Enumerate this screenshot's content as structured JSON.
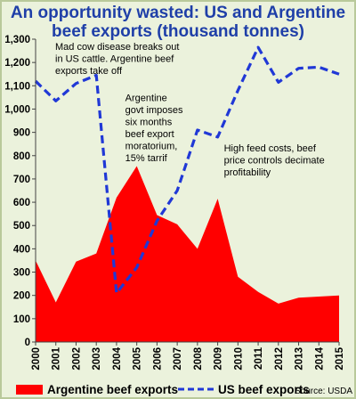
{
  "title_line1": "An opportunity wasted: US and Argentine",
  "title_line2": "beef exports (thousand tonnes)",
  "source": "Source: USDA",
  "colors": {
    "argentina": "#ff0000",
    "us": "#2038d6",
    "background": "#ebf2dc"
  },
  "chart_data": {
    "type": "area",
    "title": "An opportunity wasted: US and Argentine beef exports (thousand tonnes)",
    "x": [
      "2000",
      "2001",
      "2002",
      "2003",
      "2004",
      "2005",
      "2006",
      "2007",
      "2008",
      "2009",
      "2010",
      "2011",
      "2012",
      "2013",
      "2014",
      "2015"
    ],
    "ylim": [
      0,
      1300
    ],
    "yticks": [
      "0",
      "100",
      "200",
      "300",
      "400",
      "500",
      "600",
      "700",
      "800",
      "900",
      "1,000",
      "1,100",
      "1,200",
      "1,300"
    ],
    "grid": false,
    "legend_position": "bottom",
    "series": [
      {
        "name": "Argentine beef exports",
        "style": "filled-area",
        "color": "#ff0000",
        "values": [
          350,
          170,
          345,
          380,
          620,
          755,
          545,
          505,
          400,
          615,
          280,
          215,
          165,
          190,
          195,
          200
        ]
      },
      {
        "name": "US beef exports",
        "style": "dashed-line",
        "color": "#2038d6",
        "values": [
          1120,
          1035,
          1110,
          1145,
          210,
          320,
          520,
          650,
          910,
          880,
          1080,
          1265,
          1115,
          1175,
          1180,
          1150
        ]
      }
    ],
    "annotations": [
      {
        "lines": [
          "Mad cow disease breaks out",
          "in US cattle.  Argentine beef",
          "exports take off"
        ]
      },
      {
        "lines": [
          "Argentine",
          "govt imposes",
          "six months",
          "beef export",
          "moratorium,",
          "15% tarrif"
        ]
      },
      {
        "lines": [
          "High feed costs, beef",
          "price controls decimate",
          "profitability"
        ]
      }
    ]
  }
}
